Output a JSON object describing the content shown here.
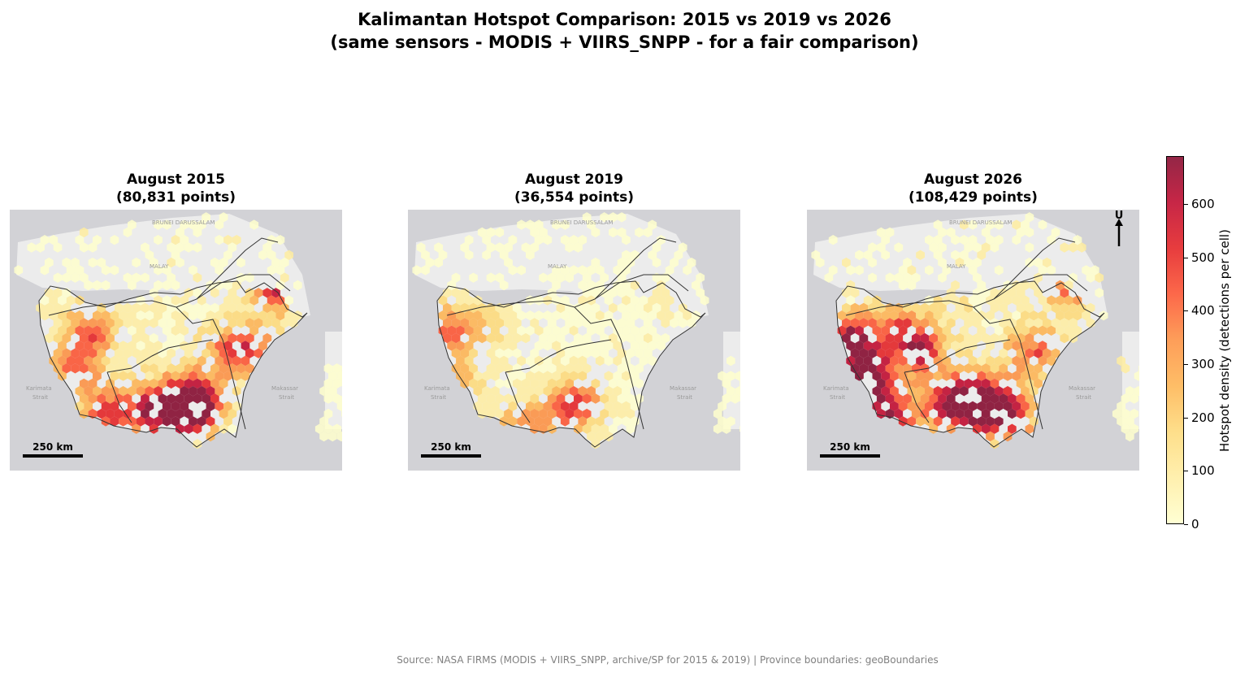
{
  "figure": {
    "title_line1": "Kalimantan Hotspot Comparison: 2015 vs 2019 vs 2026",
    "title_line2": "(same sensors - MODIS + VIIRS_SNPP - for a fair comparison)",
    "source": "Source: NASA FIRMS (MODIS + VIIRS_SNPP, archive/SP for 2015 & 2019) | Province boundaries: geoBoundaries"
  },
  "panels": [
    {
      "title": "August 2015",
      "subtitle": "(80,831 points)",
      "scale_label": "250 km",
      "show_north": false,
      "intensity": 1.0,
      "hotspots": "south"
    },
    {
      "title": "August 2019",
      "subtitle": "(36,554 points)",
      "scale_label": "250 km",
      "show_north": false,
      "intensity": 0.55,
      "hotspots": "light"
    },
    {
      "title": "August 2026",
      "subtitle": "(108,429 points)",
      "scale_label": "250 km",
      "show_north": true,
      "north_label": "U",
      "intensity": 1.2,
      "hotspots": "west"
    }
  ],
  "basemap_labels": {
    "brunei": "BRUNEI DARUSSALAM",
    "malaysia": "MALAY",
    "strait_left_1": "Karimata",
    "strait_left_2": "Strait",
    "strait_right_1": "Makassar",
    "strait_right_2": "Strait"
  },
  "colorbar": {
    "label": "Hotspot density (detections per cell)",
    "min": 0,
    "max": 690,
    "ticks": [
      "0",
      "100",
      "200",
      "300",
      "400",
      "500",
      "600"
    ],
    "colors": [
      "#ffffcc",
      "#ffeda0",
      "#fed976",
      "#feb24c",
      "#fd8d3c",
      "#fc4e2a",
      "#e31a1c",
      "#bd0026",
      "#800026"
    ]
  }
}
